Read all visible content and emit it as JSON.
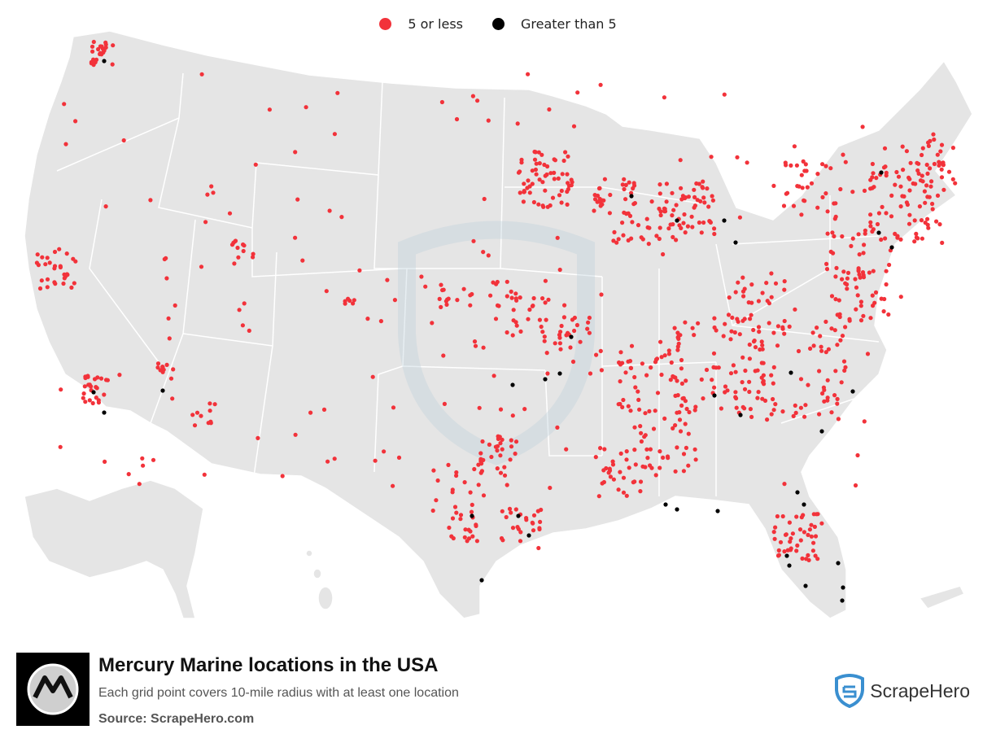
{
  "legend": {
    "items": [
      {
        "label": "5 or less",
        "color": "#f2323a"
      },
      {
        "label": "Greater than 5",
        "color": "#000000"
      }
    ]
  },
  "map": {
    "land_color": "#e5e5e5",
    "border_color": "#ffffff",
    "watermark": "ScrapeHero shield watermark"
  },
  "footer": {
    "title": "Mercury Marine locations in the USA",
    "subtitle": "Each grid point covers 10-mile radius with at least one location",
    "source": "Source: ScrapeHero.com",
    "brand_name": "ScrapeHero",
    "brand_color": "#3a8fd0"
  }
}
